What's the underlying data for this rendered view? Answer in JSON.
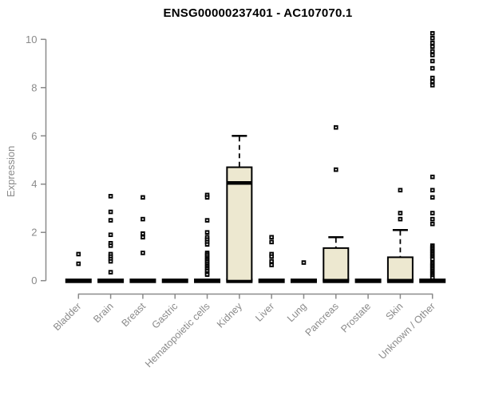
{
  "chart_data": {
    "type": "boxplot",
    "title": "ENSG00000237401 - AC107070.1",
    "ylabel": "Expression",
    "xlabel": "",
    "ylim": [
      0,
      10
    ],
    "yticks": [
      0,
      2,
      4,
      6,
      8,
      10
    ],
    "grid": false,
    "legend": "none",
    "colors": {
      "box_fill": "#EDE8D0",
      "box_stroke": "#000000",
      "outlier": "#000000",
      "axis": "#8a8a8a",
      "title_color": "#000000"
    },
    "categories": [
      {
        "label": "Bladder",
        "box": {
          "q1": 0,
          "q3": 0,
          "median": 0,
          "whisker_low": 0,
          "whisker_high": 0
        },
        "outliers": [
          1.1,
          0.7
        ]
      },
      {
        "label": "Brain",
        "box": {
          "q1": 0,
          "q3": 0,
          "median": 0,
          "whisker_low": 0,
          "whisker_high": 0
        },
        "outliers": [
          3.5,
          2.85,
          2.5,
          1.9,
          1.55,
          1.45,
          1.1,
          1.0,
          0.9,
          0.8,
          0.35
        ]
      },
      {
        "label": "Breast",
        "box": {
          "q1": 0,
          "q3": 0,
          "median": 0,
          "whisker_low": 0,
          "whisker_high": 0
        },
        "outliers": [
          3.45,
          2.55,
          1.95,
          1.8,
          1.15
        ]
      },
      {
        "label": "Gastric",
        "box": {
          "q1": 0,
          "q3": 0,
          "median": 0,
          "whisker_low": 0,
          "whisker_high": 0
        },
        "outliers": []
      },
      {
        "label": "Hematopoietic cells",
        "box": {
          "q1": 0,
          "q3": 0,
          "median": 0,
          "whisker_low": 0,
          "whisker_high": 0
        },
        "outliers": [
          3.55,
          3.45,
          2.5,
          2.0,
          1.8,
          1.7,
          1.6,
          1.5,
          1.15,
          1.08,
          1.0,
          0.92,
          0.85,
          0.78,
          0.7,
          0.62,
          0.55,
          0.48,
          0.4,
          0.3,
          0.25
        ]
      },
      {
        "label": "Kidney",
        "box": {
          "q1": 0,
          "q3": 4.7,
          "median": 4.05,
          "whisker_low": 0,
          "whisker_high": 6.0
        },
        "outliers": []
      },
      {
        "label": "Liver",
        "box": {
          "q1": 0,
          "q3": 0,
          "median": 0,
          "whisker_low": 0,
          "whisker_high": 0
        },
        "outliers": [
          1.8,
          1.6,
          1.1,
          1.0,
          0.8,
          0.65
        ]
      },
      {
        "label": "Lung",
        "box": {
          "q1": 0,
          "q3": 0,
          "median": 0,
          "whisker_low": 0,
          "whisker_high": 0
        },
        "outliers": [
          0.75
        ]
      },
      {
        "label": "Pancreas",
        "box": {
          "q1": 0,
          "q3": 1.35,
          "median": 0,
          "whisker_low": 0,
          "whisker_high": 1.8
        },
        "outliers": [
          6.35,
          4.6
        ]
      },
      {
        "label": "Prostate",
        "box": {
          "q1": 0,
          "q3": 0,
          "median": 0,
          "whisker_low": 0,
          "whisker_high": 0
        },
        "outliers": []
      },
      {
        "label": "Skin",
        "box": {
          "q1": 0,
          "q3": 0.97,
          "median": 0,
          "whisker_low": 0,
          "whisker_high": 2.1
        },
        "outliers": [
          3.75,
          2.8,
          2.55
        ]
      },
      {
        "label": "Unknown / Other",
        "box": {
          "q1": 0,
          "q3": 0,
          "median": 0,
          "whisker_low": 0,
          "whisker_high": 0
        },
        "outliers": [
          10.25,
          10.05,
          9.85,
          9.7,
          9.5,
          9.35,
          9.1,
          8.8,
          8.4,
          8.25,
          8.1,
          4.3,
          3.75,
          3.45,
          2.8,
          2.55,
          2.35,
          1.45,
          1.38,
          1.31,
          1.24,
          1.17,
          1.1,
          1.03,
          0.96,
          0.89,
          0.75,
          0.68,
          0.61,
          0.54,
          0.47,
          0.4,
          0.33,
          0.26,
          0.19,
          0.12
        ]
      }
    ]
  }
}
